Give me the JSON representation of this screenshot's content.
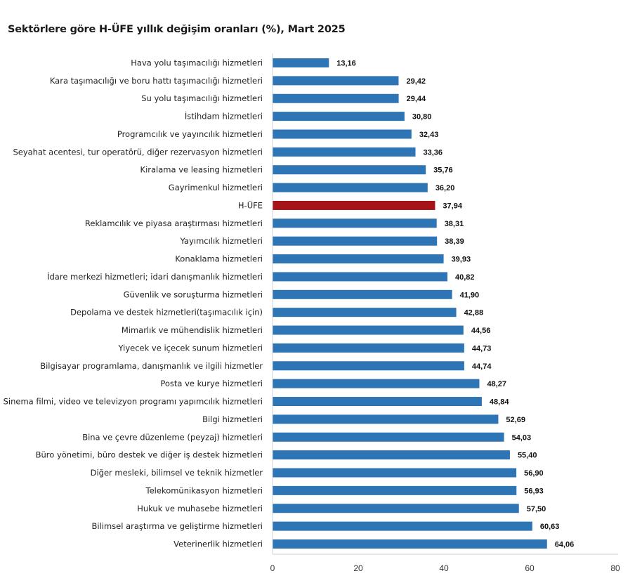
{
  "chart_data": {
    "type": "bar",
    "orientation": "horizontal",
    "title": "Sektörlere göre H-ÜFE yıllık değişim oranları (%), Mart 2025",
    "xlabel": "",
    "ylabel": "",
    "xlim": [
      0,
      80
    ],
    "xticks": [
      0,
      20,
      40,
      60,
      80
    ],
    "grid": false,
    "legend": "none",
    "colors": {
      "default": "#2e75b6",
      "highlight": "#a6141a"
    },
    "highlight_category": "H-ÜFE",
    "categories": [
      "Hava yolu taşımacılığı hizmetleri",
      "Kara taşımacılığı ve boru hattı taşımacılığı hizmetleri",
      "Su yolu taşımacılığı hizmetleri",
      "İstihdam hizmetleri",
      "Programcılık ve yayıncılık hizmetleri",
      "Seyahat acentesi, tur operatörü, diğer rezervasyon hizmetleri",
      "Kiralama ve leasing hizmetleri",
      "Gayrimenkul hizmetleri",
      "H-ÜFE",
      "Reklamcılık ve piyasa araştırması hizmetleri",
      "Yayımcılık hizmetleri",
      "Konaklama hizmetleri",
      "İdare merkezi hizmetleri; idari danışmanlık hizmetleri",
      "Güvenlik ve soruşturma hizmetleri",
      "Depolama ve destek hizmetleri(taşımacılık için)",
      "Mimarlık ve mühendislik hizmetleri",
      "Yiyecek ve içecek sunum hizmetleri",
      "Bilgisayar programlama, danışmanlık ve ilgili hizmetler",
      "Posta ve kurye hizmetleri",
      "Sinema filmi, video ve televizyon programı yapımcılık hizmetleri",
      "Bilgi hizmetleri",
      "Bina ve çevre düzenleme (peyzaj) hizmetleri",
      "Büro yönetimi, büro destek ve diğer iş destek hizmetleri",
      "Diğer mesleki, bilimsel ve teknik hizmetler",
      "Telekomünikasyon hizmetleri",
      "Hukuk ve muhasebe hizmetleri",
      "Bilimsel araştırma ve geliştirme hizmetleri",
      "Veterinerlik hizmetleri"
    ],
    "values": [
      13.16,
      29.42,
      29.44,
      30.8,
      32.43,
      33.36,
      35.76,
      36.2,
      37.94,
      38.31,
      38.39,
      39.93,
      40.82,
      41.9,
      42.88,
      44.56,
      44.73,
      44.74,
      48.27,
      48.84,
      52.69,
      54.03,
      55.4,
      56.9,
      56.93,
      57.5,
      60.63,
      64.06
    ],
    "value_labels": [
      "13,16",
      "29,42",
      "29,44",
      "30,80",
      "32,43",
      "33,36",
      "35,76",
      "36,20",
      "37,94",
      "38,31",
      "38,39",
      "39,93",
      "40,82",
      "41,90",
      "42,88",
      "44,56",
      "44,73",
      "44,74",
      "48,27",
      "48,84",
      "52,69",
      "54,03",
      "55,40",
      "56,90",
      "56,93",
      "57,50",
      "60,63",
      "64,06"
    ]
  }
}
